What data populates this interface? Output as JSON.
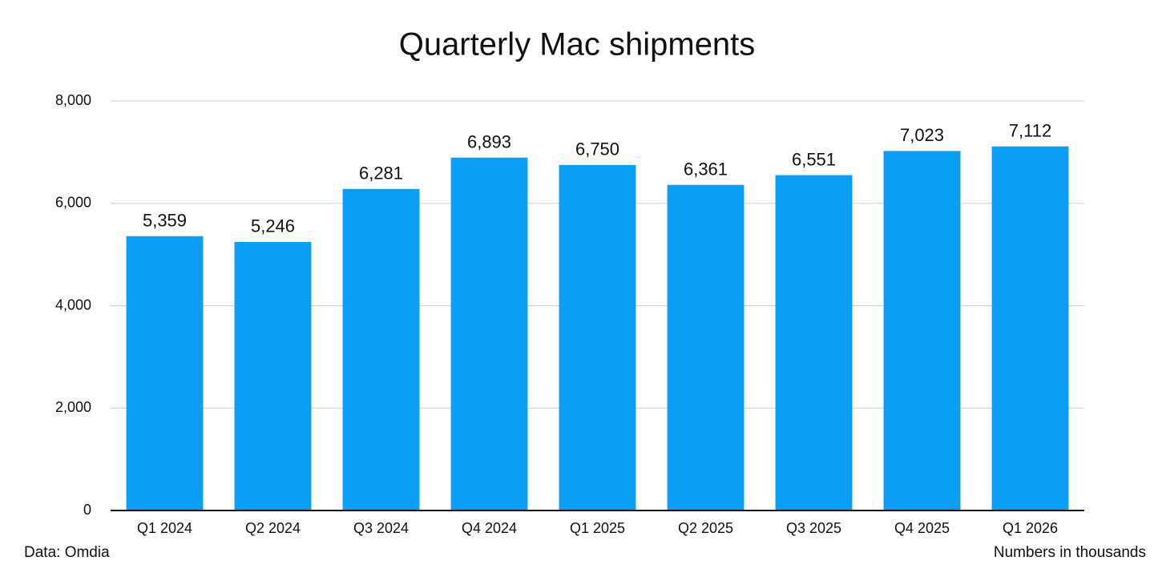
{
  "chart_data": {
    "type": "bar",
    "title": "Quarterly Mac shipments",
    "categories": [
      "Q1 2024",
      "Q2 2024",
      "Q3 2024",
      "Q4 2024",
      "Q1 2025",
      "Q2 2025",
      "Q3 2025",
      "Q4 2025",
      "Q1 2026"
    ],
    "values": [
      5359,
      5246,
      6281,
      6893,
      6750,
      6361,
      6551,
      7023,
      7112
    ],
    "value_labels": [
      "5,359",
      "5,246",
      "6,281",
      "6,893",
      "6,750",
      "6,361",
      "6,551",
      "7,023",
      "7,112"
    ],
    "color": "#0a9ff5",
    "ylim": [
      0,
      8000
    ],
    "yticks": [
      0,
      {
        "value": 2000,
        "label": "2,000"
      },
      {
        "value": 4000,
        "label": "4,000"
      },
      {
        "value": 6000,
        "label": "6,000"
      },
      {
        "value": 8000,
        "label": "8,000"
      }
    ],
    "grid": true,
    "source": "Data: Omdia",
    "note": "Numbers in thousands"
  }
}
